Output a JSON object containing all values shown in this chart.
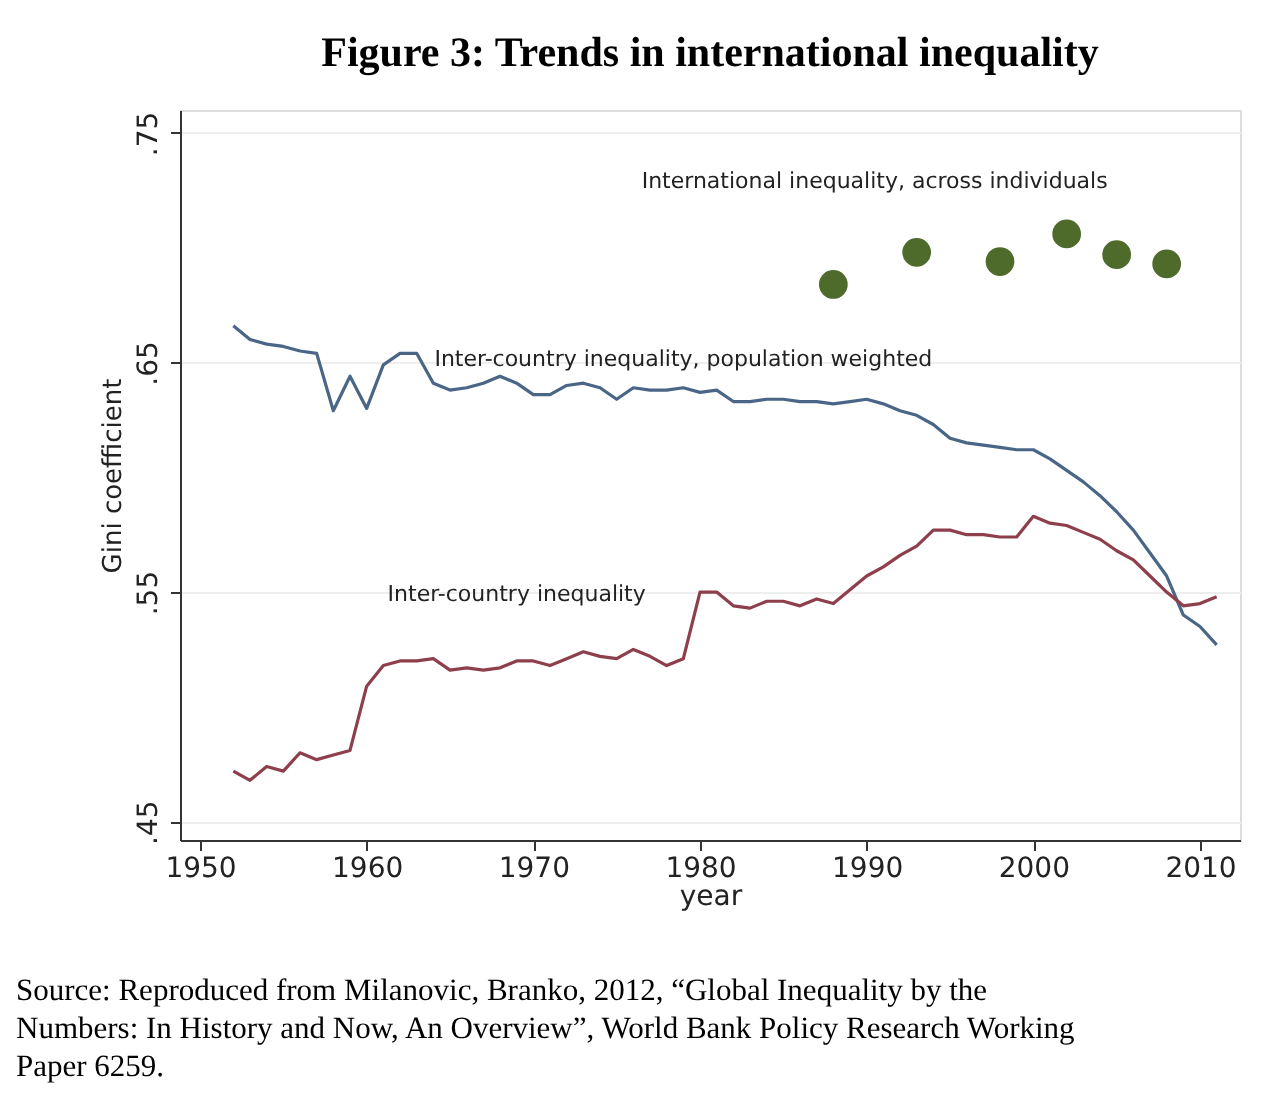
{
  "chart_data": {
    "type": "line",
    "title": "Figure 3: Trends in international inequality",
    "xlabel": "year",
    "ylabel": "Gini coefficient",
    "xlim": [
      1948.8,
      2012.4
    ],
    "xticks": [
      1950,
      1960,
      1970,
      1980,
      1990,
      2000,
      2010
    ],
    "ylim": [
      0.442,
      0.76
    ],
    "yticks": [
      {
        "value": 0.45,
        "label": ".45"
      },
      {
        "value": 0.55,
        "label": ".55"
      },
      {
        "value": 0.65,
        "label": ".65"
      },
      {
        "value": 0.75,
        "label": ".75"
      }
    ],
    "grid": "y",
    "legend": false,
    "series": [
      {
        "name": "Inter-country inequality, population weighted",
        "color": "#4a6687",
        "x": [
          1952,
          1953,
          1954,
          1955,
          1956,
          1957,
          1958,
          1959,
          1960,
          1961,
          1962,
          1963,
          1964,
          1965,
          1966,
          1967,
          1968,
          1969,
          1970,
          1971,
          1972,
          1973,
          1974,
          1975,
          1976,
          1977,
          1978,
          1979,
          1980,
          1981,
          1982,
          1983,
          1984,
          1985,
          1986,
          1987,
          1988,
          1989,
          1990,
          1991,
          1992,
          1993,
          1994,
          1995,
          1996,
          1997,
          1998,
          1999,
          2000,
          2001,
          2002,
          2003,
          2004,
          2005,
          2006,
          2007,
          2008,
          2009,
          2010,
          2011
        ],
        "values": [
          0.666,
          0.66,
          0.658,
          0.657,
          0.655,
          0.654,
          0.629,
          0.644,
          0.63,
          0.649,
          0.654,
          0.654,
          0.641,
          0.638,
          0.639,
          0.641,
          0.644,
          0.641,
          0.636,
          0.636,
          0.64,
          0.641,
          0.639,
          0.634,
          0.639,
          0.638,
          0.638,
          0.639,
          0.637,
          0.638,
          0.633,
          0.633,
          0.634,
          0.634,
          0.633,
          0.633,
          0.632,
          0.633,
          0.634,
          0.632,
          0.629,
          0.627,
          0.623,
          0.617,
          0.615,
          0.614,
          0.613,
          0.612,
          0.612,
          0.608,
          0.603,
          0.598,
          0.592,
          0.585,
          0.577,
          0.567,
          0.557,
          0.54,
          0.535,
          0.527
        ]
      },
      {
        "name": "Inter-country inequality",
        "color": "#8e3f4c",
        "x": [
          1952,
          1953,
          1954,
          1955,
          1956,
          1957,
          1958,
          1959,
          1960,
          1961,
          1962,
          1963,
          1964,
          1965,
          1966,
          1967,
          1968,
          1969,
          1970,
          1971,
          1972,
          1973,
          1974,
          1975,
          1976,
          1977,
          1978,
          1979,
          1980,
          1981,
          1982,
          1983,
          1984,
          1985,
          1986,
          1987,
          1988,
          1989,
          1990,
          1991,
          1992,
          1993,
          1994,
          1995,
          1996,
          1997,
          1998,
          1999,
          2000,
          2001,
          2002,
          2003,
          2004,
          2005,
          2006,
          2007,
          2008,
          2009,
          2010,
          2011
        ],
        "values": [
          0.472,
          0.468,
          0.474,
          0.472,
          0.48,
          0.477,
          0.479,
          0.481,
          0.509,
          0.518,
          0.52,
          0.52,
          0.521,
          0.516,
          0.517,
          0.516,
          0.517,
          0.52,
          0.52,
          0.518,
          0.521,
          0.524,
          0.522,
          0.521,
          0.525,
          0.522,
          0.518,
          0.521,
          0.55,
          0.55,
          0.544,
          0.543,
          0.546,
          0.546,
          0.544,
          0.547,
          0.545,
          0.551,
          0.557,
          0.561,
          0.566,
          0.57,
          0.577,
          0.577,
          0.575,
          0.575,
          0.574,
          0.574,
          0.583,
          0.58,
          0.579,
          0.576,
          0.573,
          0.568,
          0.564,
          0.557,
          0.55,
          0.544,
          0.545,
          0.548
        ]
      },
      {
        "name": "International inequality, across individuals",
        "type": "scatter",
        "color": "#4f6b2c",
        "marker": "circle",
        "x": [
          1988,
          1993,
          1998,
          2002,
          2005,
          2008
        ],
        "values": [
          0.684,
          0.698,
          0.694,
          0.706,
          0.697,
          0.693
        ]
      }
    ],
    "annotations": [
      "Source:   Reproduced from Milanovic, Branko, 2012, “Global Inequality by the Numbers:  In History and Now, An Overview”, World Bank Policy Research Working Paper 6259."
    ]
  }
}
